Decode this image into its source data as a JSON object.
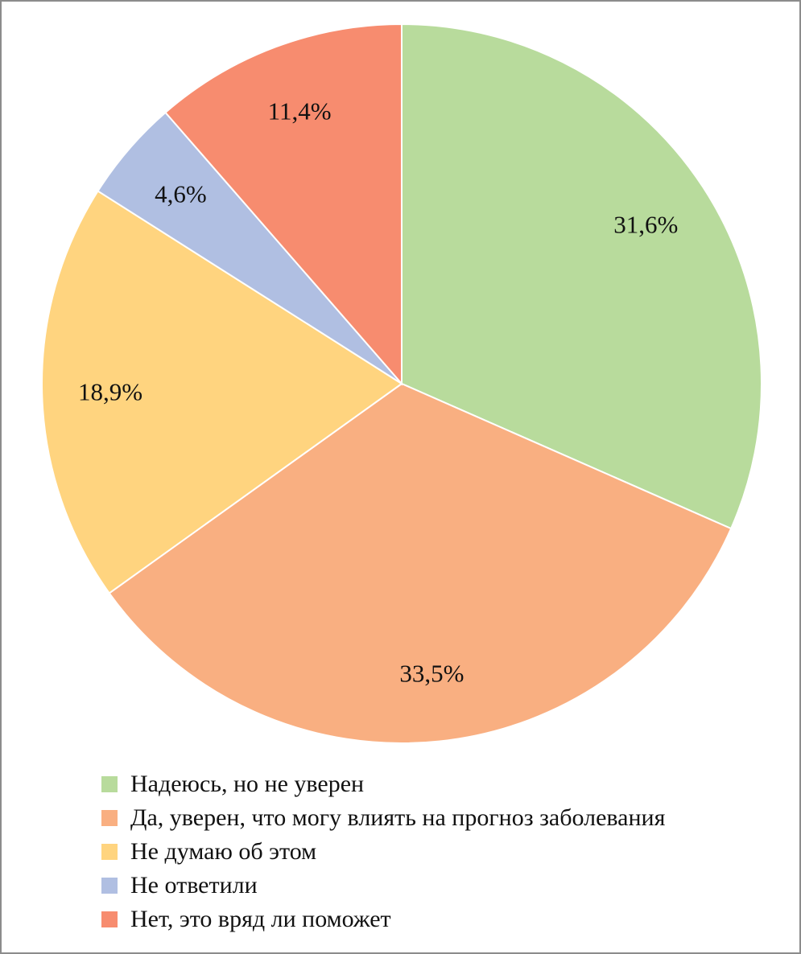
{
  "chart_data": {
    "type": "pie",
    "title": "",
    "start_angle_deg": 0,
    "direction": "clockwise",
    "legend_position": "bottom",
    "slices": [
      {
        "label": "Надеюсь, но не уверен",
        "value": 31.6,
        "display": "31,6%",
        "color": "#B8DB9C"
      },
      {
        "label": "Да, уверен, что могу влиять на прогноз заболевания",
        "value": 33.5,
        "display": "33,5%",
        "color": "#F9AF81"
      },
      {
        "label": "Не думаю об этом",
        "value": 18.9,
        "display": "18,9%",
        "color": "#FFD47F"
      },
      {
        "label": "Не ответили",
        "value": 4.6,
        "display": "4,6%",
        "color": "#B0BFE2"
      },
      {
        "label": "Нет, это вряд ли поможет",
        "value": 11.4,
        "display": "11,4%",
        "color": "#F78C6F"
      }
    ]
  }
}
